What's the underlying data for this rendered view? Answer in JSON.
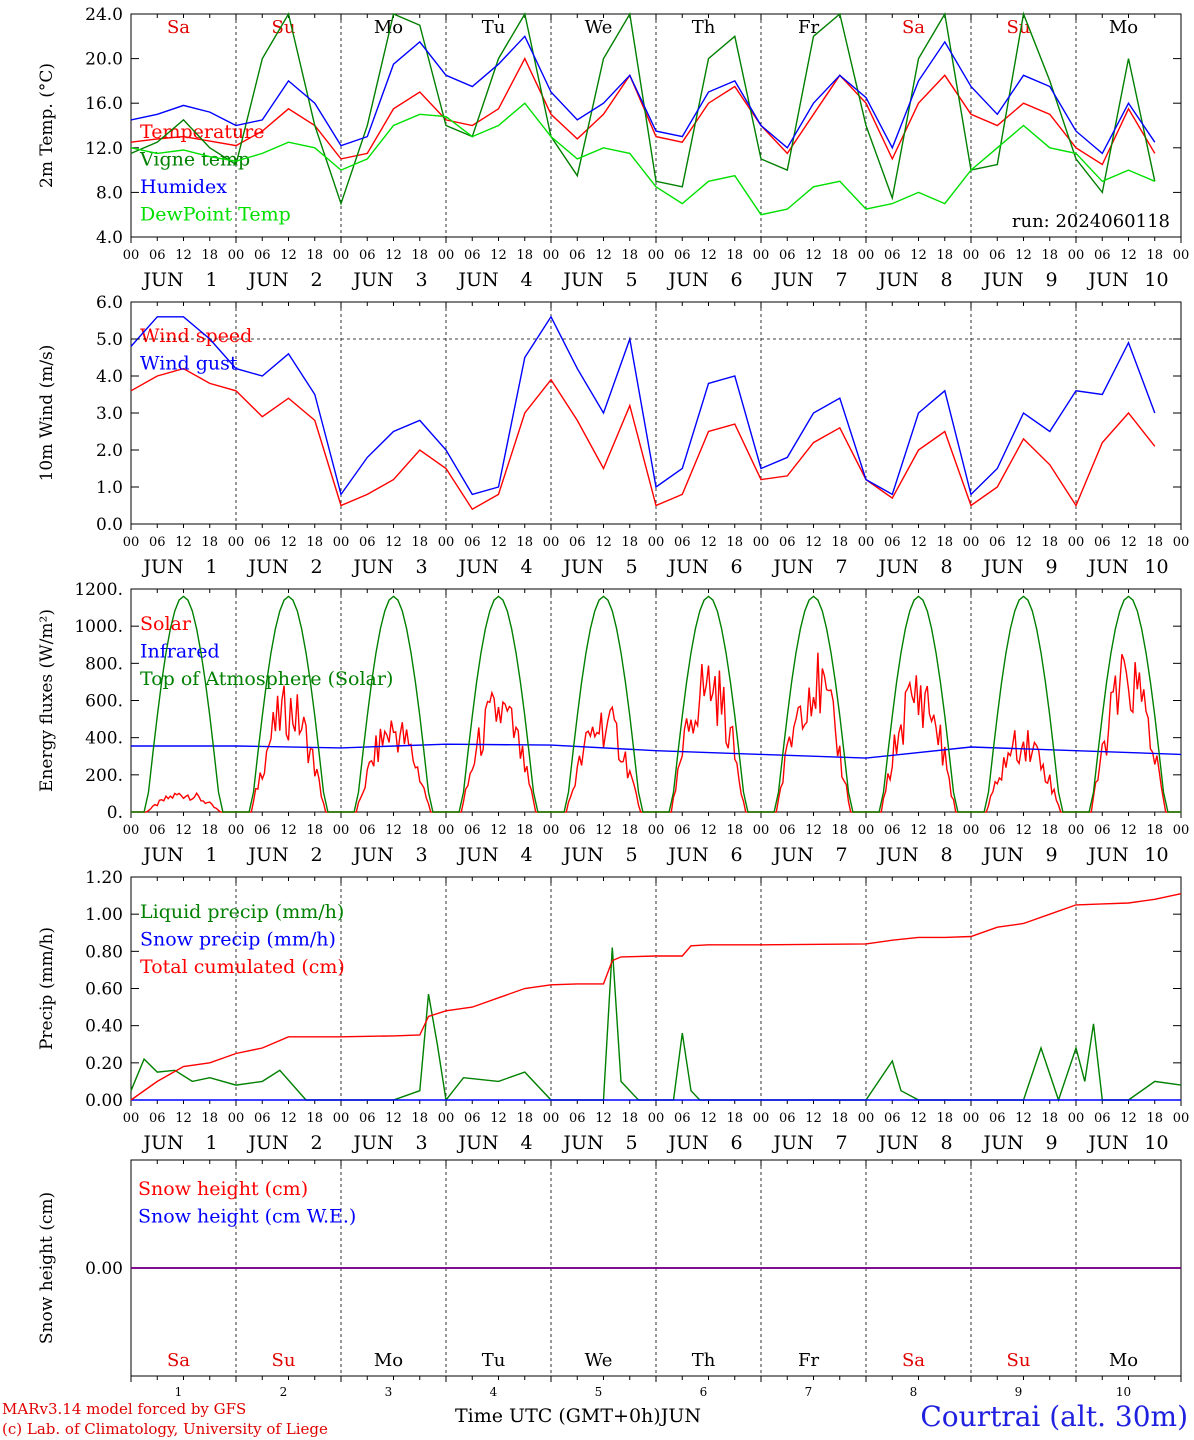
{
  "run_label": "run: 2024060118",
  "footer": {
    "model": "MARv3.14 model forced by GFS",
    "credit": "(c) Lab. of Climatology, University of Liege",
    "xlabel": "Time UTC (GMT+0h)",
    "month": "JUN",
    "station": "Courtrai (alt. 30m)"
  },
  "days": [
    "1",
    "2",
    "3",
    "4",
    "5",
    "6",
    "7",
    "8",
    "9",
    "10"
  ],
  "weekdays": [
    "Sa",
    "Su",
    "Mo",
    "Tu",
    "We",
    "Th",
    "Fr",
    "Sa",
    "Su",
    "Mo"
  ],
  "weekday_colors": [
    "#e00000",
    "#e00000",
    "#000000",
    "#000000",
    "#000000",
    "#000000",
    "#000000",
    "#e00000",
    "#e00000",
    "#000000"
  ],
  "hour_ticks": [
    "00",
    "06",
    "12",
    "18"
  ],
  "colors": {
    "red": "#ff0000",
    "green": "#008000",
    "blue": "#0000ff",
    "lightgreen": "#00e000",
    "purple": "#800080"
  },
  "chart_data": [
    {
      "type": "line",
      "ylabel": "2m Temp. (°C)",
      "ylim": [
        4,
        24
      ],
      "yticks": [
        "4.0",
        "8.0",
        "12.0",
        "16.0",
        "20.0",
        "24.0"
      ],
      "x_unit": "hours since Jun 1 00 UTC",
      "series": [
        {
          "name": "Temperature",
          "color": "#ff0000",
          "x": [
            0,
            6,
            12,
            18,
            24,
            30,
            36,
            42,
            48,
            54,
            60,
            66,
            72,
            78,
            84,
            90,
            96,
            102,
            108,
            114,
            120,
            126,
            132,
            138,
            144,
            150,
            156,
            162,
            168,
            174,
            180,
            186,
            192,
            198,
            204,
            210,
            216,
            222,
            228,
            234
          ],
          "y": [
            12.5,
            12.8,
            13.0,
            12.6,
            12.2,
            13.5,
            15.5,
            14.0,
            11.0,
            11.5,
            15.5,
            17.0,
            14.5,
            14.0,
            15.5,
            20.0,
            15.0,
            12.8,
            15.0,
            18.5,
            13.0,
            12.5,
            16.0,
            17.5,
            14.0,
            11.5,
            15.0,
            18.5,
            16.0,
            11.0,
            16.0,
            18.5,
            15.0,
            14.0,
            16.0,
            15.0,
            12.0,
            10.5,
            15.5,
            11.5
          ]
        },
        {
          "name": "Vigne temp",
          "color": "#008000",
          "x": [
            0,
            6,
            12,
            18,
            24,
            30,
            36,
            42,
            48,
            54,
            60,
            66,
            72,
            78,
            84,
            90,
            96,
            102,
            108,
            114,
            120,
            126,
            132,
            138,
            144,
            150,
            156,
            162,
            168,
            174,
            180,
            186,
            192,
            198,
            204,
            210,
            216,
            222,
            228,
            234
          ],
          "y": [
            11.5,
            12.5,
            14.5,
            12.0,
            10.5,
            20.0,
            24.0,
            14.0,
            7.0,
            14.0,
            24.0,
            23.0,
            14.0,
            13.0,
            20.0,
            24.0,
            13.0,
            9.5,
            20.0,
            24.0,
            9.0,
            8.5,
            20.0,
            22.0,
            11.0,
            10.0,
            22.0,
            24.0,
            14.0,
            7.5,
            20.0,
            24.0,
            10.0,
            10.5,
            24.0,
            18.0,
            11.0,
            8.0,
            20.0,
            9.0
          ]
        },
        {
          "name": "Humidex",
          "color": "#0000ff",
          "x": [
            0,
            6,
            12,
            18,
            24,
            30,
            36,
            42,
            48,
            54,
            60,
            66,
            72,
            78,
            84,
            90,
            96,
            102,
            108,
            114,
            120,
            126,
            132,
            138,
            144,
            150,
            156,
            162,
            168,
            174,
            180,
            186,
            192,
            198,
            204,
            210,
            216,
            222,
            228,
            234
          ],
          "y": [
            14.5,
            15.0,
            15.8,
            15.2,
            14.0,
            14.5,
            18.0,
            16.0,
            12.2,
            13.0,
            19.5,
            21.5,
            18.5,
            17.5,
            19.5,
            22.0,
            17.0,
            14.5,
            16.0,
            18.5,
            13.5,
            13.0,
            17.0,
            18.0,
            14.0,
            12.0,
            16.0,
            18.5,
            16.5,
            12.0,
            18.0,
            21.5,
            17.5,
            15.0,
            18.5,
            17.5,
            13.5,
            11.5,
            16.0,
            12.5
          ]
        },
        {
          "name": "DewPoint Temp",
          "color": "#00e000",
          "x": [
            0,
            6,
            12,
            18,
            24,
            30,
            36,
            42,
            48,
            54,
            60,
            66,
            72,
            78,
            84,
            90,
            96,
            102,
            108,
            114,
            120,
            126,
            132,
            138,
            144,
            150,
            156,
            162,
            168,
            174,
            180,
            186,
            192,
            198,
            204,
            210,
            216,
            222,
            228,
            234
          ],
          "y": [
            12.0,
            11.5,
            11.8,
            11.2,
            10.8,
            11.5,
            12.5,
            12.0,
            10.0,
            11.0,
            14.0,
            15.0,
            14.8,
            13.0,
            14.0,
            16.0,
            13.0,
            11.0,
            12.0,
            11.5,
            8.5,
            7.0,
            9.0,
            9.5,
            6.0,
            6.5,
            8.5,
            9.0,
            6.5,
            7.0,
            8.0,
            7.0,
            10.0,
            12.0,
            14.0,
            12.0,
            11.5,
            9.0,
            10.0,
            9.0
          ]
        }
      ]
    },
    {
      "type": "line",
      "ylabel": "10m Wind (m/s)",
      "ylim": [
        0,
        6
      ],
      "yticks": [
        "0.0",
        "1.0",
        "2.0",
        "3.0",
        "4.0",
        "5.0",
        "6.0"
      ],
      "series": [
        {
          "name": "Wind speed",
          "color": "#ff0000",
          "x": [
            0,
            6,
            12,
            18,
            24,
            30,
            36,
            42,
            48,
            54,
            60,
            66,
            72,
            78,
            84,
            90,
            96,
            102,
            108,
            114,
            120,
            126,
            132,
            138,
            144,
            150,
            156,
            162,
            168,
            174,
            180,
            186,
            192,
            198,
            204,
            210,
            216,
            222,
            228,
            234
          ],
          "y": [
            3.6,
            4.0,
            4.2,
            3.8,
            3.6,
            2.9,
            3.4,
            2.8,
            0.5,
            0.8,
            1.2,
            2.0,
            1.5,
            0.4,
            0.8,
            3.0,
            3.9,
            2.8,
            1.5,
            3.2,
            0.5,
            0.8,
            2.5,
            2.7,
            1.2,
            1.3,
            2.2,
            2.6,
            1.2,
            0.7,
            2.0,
            2.5,
            0.5,
            1.0,
            2.3,
            1.6,
            0.5,
            2.2,
            3.0,
            2.1
          ]
        },
        {
          "name": "Wind gust",
          "color": "#0000ff",
          "x": [
            0,
            6,
            12,
            18,
            24,
            30,
            36,
            42,
            48,
            54,
            60,
            66,
            72,
            78,
            84,
            90,
            96,
            102,
            108,
            114,
            120,
            126,
            132,
            138,
            144,
            150,
            156,
            162,
            168,
            174,
            180,
            186,
            192,
            198,
            204,
            210,
            216,
            222,
            228,
            234
          ],
          "y": [
            4.8,
            5.6,
            5.6,
            5.0,
            4.2,
            4.0,
            4.6,
            3.5,
            0.8,
            1.8,
            2.5,
            2.8,
            2.0,
            0.8,
            1.0,
            4.5,
            5.6,
            4.2,
            3.0,
            5.0,
            1.0,
            1.5,
            3.8,
            4.0,
            1.5,
            1.8,
            3.0,
            3.4,
            1.2,
            0.8,
            3.0,
            3.6,
            0.8,
            1.5,
            3.0,
            2.5,
            3.6,
            3.5,
            4.9,
            3.0
          ]
        }
      ]
    },
    {
      "type": "line",
      "ylabel": "Energy fluxes (W/m²)",
      "ylim": [
        0,
        1200
      ],
      "yticks": [
        "0.",
        "200.",
        "400.",
        "600.",
        "800.",
        "1000.",
        "1200."
      ],
      "series": [
        {
          "name": "Solar",
          "color": "#ff0000",
          "daily_peak": [
            120,
            700,
            560,
            690,
            610,
            880,
            890,
            810,
            480,
            900
          ]
        },
        {
          "name": "Infrared",
          "color": "#0000ff",
          "x": [
            0,
            24,
            48,
            72,
            96,
            120,
            144,
            168,
            192,
            216,
            240
          ],
          "y": [
            355,
            355,
            345,
            365,
            360,
            330,
            310,
            290,
            350,
            330,
            310
          ]
        },
        {
          "name": "Top of Atmosphere (Solar)",
          "color": "#008000",
          "daily_peak": [
            1160,
            1160,
            1160,
            1160,
            1160,
            1160,
            1160,
            1160,
            1160,
            1160
          ]
        }
      ]
    },
    {
      "type": "line",
      "ylabel": "Precip (mm/h)",
      "ylim": [
        0,
        1.2
      ],
      "yticks": [
        "0.00",
        "0.20",
        "0.40",
        "0.60",
        "0.80",
        "1.00",
        "1.20"
      ],
      "series": [
        {
          "name": "Liquid precip (mm/h)",
          "color": "#008000",
          "x": [
            0,
            3,
            6,
            10,
            14,
            18,
            24,
            30,
            34,
            40,
            48,
            60,
            66,
            68,
            70,
            72,
            76,
            84,
            90,
            96,
            100,
            108,
            110,
            112,
            116,
            124,
            126,
            128,
            130,
            132,
            168,
            174,
            176,
            180,
            204,
            208,
            212,
            216,
            218,
            220,
            222,
            228,
            234,
            240
          ],
          "y": [
            0.05,
            0.22,
            0.15,
            0.16,
            0.1,
            0.12,
            0.08,
            0.1,
            0.16,
            0.0,
            0.0,
            0.0,
            0.05,
            0.57,
            0.3,
            0.0,
            0.12,
            0.1,
            0.15,
            0.0,
            0.0,
            0.0,
            0.82,
            0.1,
            0.0,
            0.0,
            0.36,
            0.05,
            0.0,
            0.0,
            0.0,
            0.21,
            0.05,
            0.0,
            0.0,
            0.28,
            0.0,
            0.28,
            0.1,
            0.41,
            0.0,
            0.0,
            0.1,
            0.08
          ]
        },
        {
          "name": "Snow precip (mm/h)",
          "color": "#0000ff",
          "x": [
            0,
            240
          ],
          "y": [
            0,
            0
          ]
        },
        {
          "name": "Total cumulated (cm)",
          "color": "#ff0000",
          "x": [
            0,
            6,
            12,
            18,
            24,
            30,
            36,
            48,
            60,
            66,
            68,
            72,
            78,
            84,
            90,
            96,
            102,
            108,
            110,
            112,
            120,
            126,
            128,
            132,
            144,
            168,
            174,
            180,
            186,
            192,
            198,
            204,
            210,
            216,
            222,
            228,
            234,
            240
          ],
          "y": [
            0.0,
            0.1,
            0.18,
            0.2,
            0.25,
            0.28,
            0.34,
            0.34,
            0.345,
            0.35,
            0.45,
            0.48,
            0.5,
            0.55,
            0.6,
            0.62,
            0.625,
            0.625,
            0.75,
            0.77,
            0.775,
            0.775,
            0.83,
            0.835,
            0.835,
            0.84,
            0.86,
            0.875,
            0.875,
            0.88,
            0.93,
            0.95,
            1.0,
            1.05,
            1.055,
            1.06,
            1.08,
            1.11
          ]
        }
      ]
    },
    {
      "type": "line",
      "ylabel": "Snow height (cm)",
      "ylim": [
        -1,
        1
      ],
      "yticks": [
        "0.00"
      ],
      "series": [
        {
          "name": "Snow height (cm)",
          "color": "#ff0000",
          "x": [
            0,
            240
          ],
          "y": [
            0,
            0
          ]
        },
        {
          "name": "Snow height (cm W.E.)",
          "color": "#0000ff",
          "x": [
            0,
            240
          ],
          "y": [
            0,
            0
          ]
        }
      ]
    }
  ]
}
